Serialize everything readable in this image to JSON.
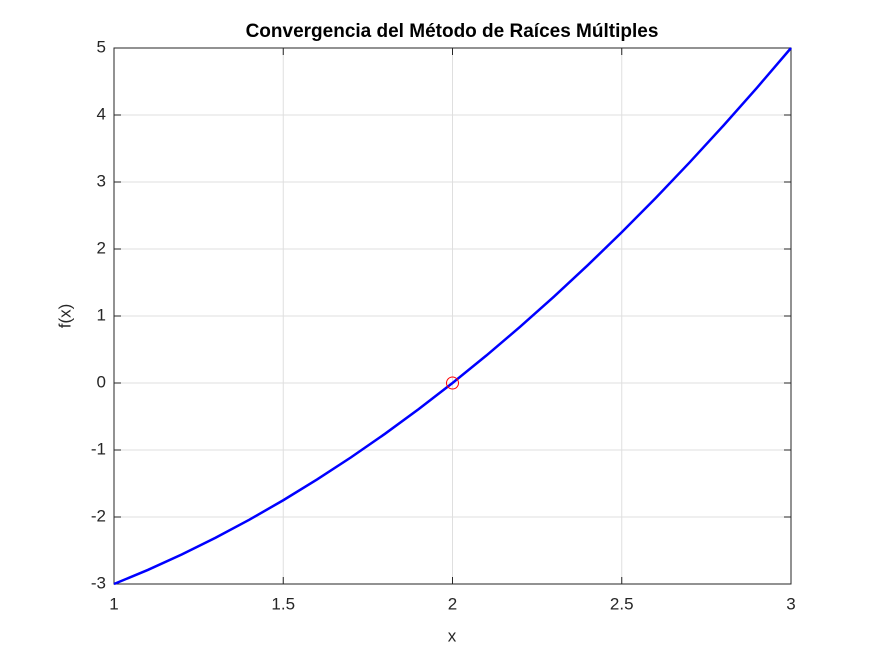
{
  "chart_data": {
    "type": "line",
    "title": "Convergencia del Método de Raíces Múltiples",
    "xlabel": "x",
    "ylabel": "f(x)",
    "series": [
      {
        "color": "#0000ff",
        "x": [
          1,
          1.1,
          1.2,
          1.3,
          1.4,
          1.5,
          1.6,
          1.7,
          1.8,
          1.9,
          2,
          2.1,
          2.2,
          2.3,
          2.4,
          2.5,
          2.6,
          2.7,
          2.8,
          2.9,
          3
        ],
        "values": [
          -3,
          -2.79,
          -2.56,
          -2.31,
          -2.04,
          -1.75,
          -1.44,
          -1.11,
          -0.76,
          -0.39,
          0,
          0.41,
          0.84,
          1.29,
          1.76,
          2.25,
          2.76,
          3.29,
          3.84,
          4.41,
          5
        ]
      },
      {
        "color": "#ff0000",
        "marker": "circle",
        "x": [
          2
        ],
        "values": [
          0
        ]
      }
    ],
    "xlim": [
      1,
      3
    ],
    "xticks": [
      1,
      1.5,
      2,
      2.5,
      3
    ],
    "ylim": [
      -3,
      5
    ],
    "yticks": [
      -3,
      -2,
      -1,
      0,
      1,
      2,
      3,
      4,
      5
    ],
    "grid": true
  }
}
